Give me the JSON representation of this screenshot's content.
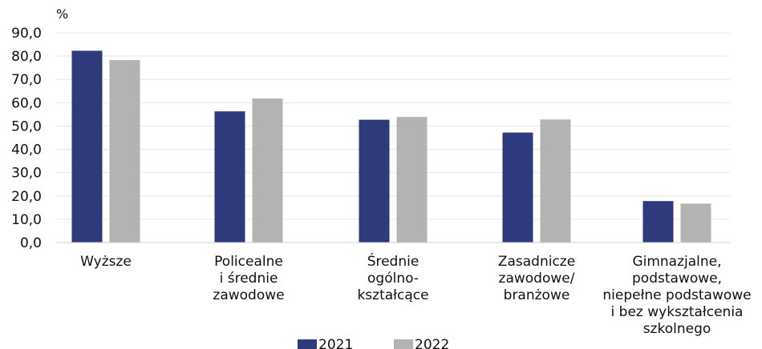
{
  "chart_data": {
    "type": "bar",
    "unit_label": "%",
    "categories": [
      [
        "Wyższe"
      ],
      [
        "Policealne",
        "i średnie",
        "zawodowe"
      ],
      [
        "Średnie",
        "ogólno-",
        "kształcące"
      ],
      [
        "Zasadnicze",
        "zawodowe/",
        "branżowe"
      ],
      [
        "Gimnazjalne,",
        "podstawowe,",
        "niepełne podstawowe",
        "i bez wykształcenia",
        "szkolnego"
      ]
    ],
    "series": [
      {
        "name": "2021",
        "color": "#2e3a7c",
        "values": [
          82.3,
          56.3,
          52.7,
          47.2,
          17.8
        ]
      },
      {
        "name": "2022",
        "color": "#b3b3b3",
        "values": [
          78.3,
          61.8,
          53.9,
          52.8,
          16.7
        ]
      }
    ],
    "y_ticks": [
      "0,0",
      "10,0",
      "20,0",
      "30,0",
      "40,0",
      "50,0",
      "60,0",
      "70,0",
      "80,0",
      "90,0"
    ],
    "ylim": [
      0,
      90
    ],
    "grid": true,
    "legend_position": "bottom"
  }
}
